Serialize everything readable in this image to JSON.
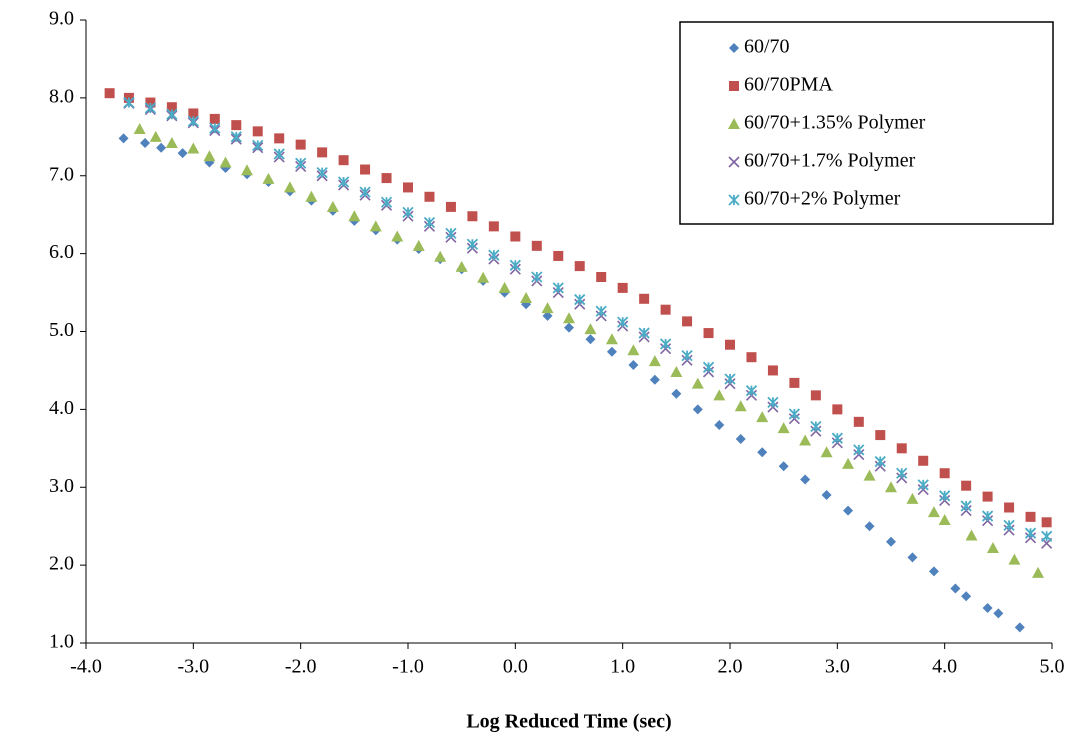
{
  "chart_data": {
    "type": "scatter",
    "x_label": "Log Reduced Time (sec)",
    "xlim": [
      -4,
      5
    ],
    "ylim": [
      1,
      9
    ],
    "xticks": [
      {
        "value": -4,
        "label": "-4.0"
      },
      {
        "value": -3,
        "label": "-3.0"
      },
      {
        "value": -2,
        "label": "-2.0"
      },
      {
        "value": -1,
        "label": "-1.0"
      },
      {
        "value": 0,
        "label": "0.0"
      },
      {
        "value": 1,
        "label": "1.0"
      },
      {
        "value": 2,
        "label": "2.0"
      },
      {
        "value": 3,
        "label": "3.0"
      },
      {
        "value": 4,
        "label": "4.0"
      },
      {
        "value": 5,
        "label": "5.0"
      }
    ],
    "yticks": [
      {
        "value": 1,
        "label": "1.0"
      },
      {
        "value": 2,
        "label": "2.0"
      },
      {
        "value": 3,
        "label": "3.0"
      },
      {
        "value": 4,
        "label": "4.0"
      },
      {
        "value": 5,
        "label": "5.0"
      },
      {
        "value": 6,
        "label": "6.0"
      },
      {
        "value": 7,
        "label": "7.0"
      },
      {
        "value": 8,
        "label": "8.0"
      },
      {
        "value": 9,
        "label": "9.0"
      }
    ],
    "legend": "top-right",
    "series": [
      {
        "name": "60/70",
        "color": "#4f81bd",
        "marker": "diamond",
        "x": [
          -3.65,
          -3.45,
          -3.3,
          -3.1,
          -2.85,
          -2.7,
          -2.5,
          -2.3,
          -2.1,
          -1.9,
          -1.7,
          -1.5,
          -1.3,
          -1.1,
          -0.9,
          -0.7,
          -0.5,
          -0.3,
          -0.1,
          0.1,
          0.3,
          0.5,
          0.7,
          0.9,
          1.1,
          1.3,
          1.5,
          1.7,
          1.9,
          2.1,
          2.3,
          2.5,
          2.7,
          2.9,
          3.1,
          3.3,
          3.5,
          3.7,
          3.9,
          4.1,
          4.2,
          4.4,
          4.5,
          4.7
        ],
        "values": [
          7.48,
          7.42,
          7.36,
          7.29,
          7.17,
          7.1,
          7.02,
          6.92,
          6.8,
          6.68,
          6.55,
          6.42,
          6.3,
          6.18,
          6.06,
          5.93,
          5.8,
          5.65,
          5.5,
          5.35,
          5.2,
          5.05,
          4.9,
          4.74,
          4.57,
          4.38,
          4.2,
          4.0,
          3.8,
          3.62,
          3.45,
          3.27,
          3.1,
          2.9,
          2.7,
          2.5,
          2.3,
          2.1,
          1.92,
          1.7,
          1.6,
          1.45,
          1.38,
          1.2
        ]
      },
      {
        "name": "60/70PMA",
        "color": "#c0504d",
        "marker": "square",
        "x": [
          -3.78,
          -3.6,
          -3.4,
          -3.2,
          -3.0,
          -2.8,
          -2.6,
          -2.4,
          -2.2,
          -2.0,
          -1.8,
          -1.6,
          -1.4,
          -1.2,
          -1.0,
          -0.8,
          -0.6,
          -0.4,
          -0.2,
          0.0,
          0.2,
          0.4,
          0.6,
          0.8,
          1.0,
          1.2,
          1.4,
          1.6,
          1.8,
          2.0,
          2.2,
          2.4,
          2.6,
          2.8,
          3.0,
          3.2,
          3.4,
          3.6,
          3.8,
          4.0,
          4.2,
          4.4,
          4.6,
          4.8,
          4.95
        ],
        "values": [
          8.06,
          8.0,
          7.94,
          7.88,
          7.8,
          7.73,
          7.65,
          7.57,
          7.48,
          7.4,
          7.3,
          7.2,
          7.08,
          6.97,
          6.85,
          6.73,
          6.6,
          6.48,
          6.35,
          6.22,
          6.1,
          5.97,
          5.84,
          5.7,
          5.56,
          5.42,
          5.28,
          5.13,
          4.98,
          4.83,
          4.67,
          4.5,
          4.34,
          4.18,
          4.0,
          3.84,
          3.67,
          3.5,
          3.34,
          3.18,
          3.02,
          2.88,
          2.74,
          2.62,
          2.55
        ]
      },
      {
        "name": "60/70+1.35% Polymer",
        "color": "#9bbb59",
        "marker": "triangle",
        "x": [
          -3.5,
          -3.35,
          -3.2,
          -3.0,
          -2.85,
          -2.7,
          -2.5,
          -2.3,
          -2.1,
          -1.9,
          -1.7,
          -1.5,
          -1.3,
          -1.1,
          -0.9,
          -0.7,
          -0.5,
          -0.3,
          -0.1,
          0.1,
          0.3,
          0.5,
          0.7,
          0.9,
          1.1,
          1.3,
          1.5,
          1.7,
          1.9,
          2.1,
          2.3,
          2.5,
          2.7,
          2.9,
          3.1,
          3.3,
          3.5,
          3.7,
          3.9,
          4.0,
          4.25,
          4.45,
          4.65,
          4.87
        ],
        "values": [
          7.6,
          7.5,
          7.42,
          7.35,
          7.25,
          7.17,
          7.07,
          6.96,
          6.85,
          6.73,
          6.6,
          6.48,
          6.35,
          6.22,
          6.1,
          5.96,
          5.83,
          5.69,
          5.56,
          5.43,
          5.3,
          5.17,
          5.03,
          4.9,
          4.76,
          4.62,
          4.48,
          4.33,
          4.18,
          4.04,
          3.9,
          3.76,
          3.6,
          3.45,
          3.3,
          3.15,
          3.0,
          2.85,
          2.68,
          2.58,
          2.38,
          2.22,
          2.07,
          1.9
        ]
      },
      {
        "name": "60/70+1.7% Polymer",
        "color": "#8064a2",
        "marker": "x",
        "x": [
          -3.6,
          -3.4,
          -3.2,
          -3.0,
          -2.8,
          -2.6,
          -2.4,
          -2.2,
          -2.0,
          -1.8,
          -1.6,
          -1.4,
          -1.2,
          -1.0,
          -0.8,
          -0.6,
          -0.4,
          -0.2,
          0.0,
          0.2,
          0.4,
          0.6,
          0.8,
          1.0,
          1.2,
          1.4,
          1.6,
          1.8,
          2.0,
          2.2,
          2.4,
          2.6,
          2.8,
          3.0,
          3.2,
          3.4,
          3.6,
          3.8,
          4.0,
          4.2,
          4.4,
          4.6,
          4.8,
          4.95
        ],
        "values": [
          7.93,
          7.85,
          7.77,
          7.68,
          7.58,
          7.47,
          7.36,
          7.24,
          7.12,
          7.0,
          6.88,
          6.75,
          6.62,
          6.48,
          6.35,
          6.21,
          6.07,
          5.93,
          5.8,
          5.65,
          5.5,
          5.35,
          5.2,
          5.07,
          4.93,
          4.78,
          4.63,
          4.48,
          4.33,
          4.18,
          4.03,
          3.88,
          3.72,
          3.57,
          3.42,
          3.27,
          3.12,
          2.97,
          2.83,
          2.7,
          2.57,
          2.45,
          2.35,
          2.28
        ]
      },
      {
        "name": "60/70+2% Polymer",
        "color": "#4bacc6",
        "marker": "star",
        "x": [
          -3.6,
          -3.4,
          -3.2,
          -3.0,
          -2.8,
          -2.6,
          -2.4,
          -2.2,
          -2.0,
          -1.8,
          -1.6,
          -1.4,
          -1.2,
          -1.0,
          -0.8,
          -0.6,
          -0.4,
          -0.2,
          0.0,
          0.2,
          0.4,
          0.6,
          0.8,
          1.0,
          1.2,
          1.4,
          1.6,
          1.8,
          2.0,
          2.2,
          2.4,
          2.6,
          2.8,
          3.0,
          3.2,
          3.4,
          3.6,
          3.8,
          4.0,
          4.2,
          4.4,
          4.6,
          4.8,
          4.95
        ],
        "values": [
          7.94,
          7.87,
          7.79,
          7.7,
          7.61,
          7.5,
          7.39,
          7.28,
          7.16,
          7.04,
          6.92,
          6.79,
          6.66,
          6.53,
          6.4,
          6.26,
          6.12,
          5.98,
          5.85,
          5.7,
          5.56,
          5.41,
          5.26,
          5.12,
          4.98,
          4.84,
          4.69,
          4.54,
          4.39,
          4.24,
          4.09,
          3.94,
          3.78,
          3.63,
          3.48,
          3.33,
          3.18,
          3.03,
          2.89,
          2.76,
          2.63,
          2.51,
          2.41,
          2.37
        ]
      }
    ]
  }
}
